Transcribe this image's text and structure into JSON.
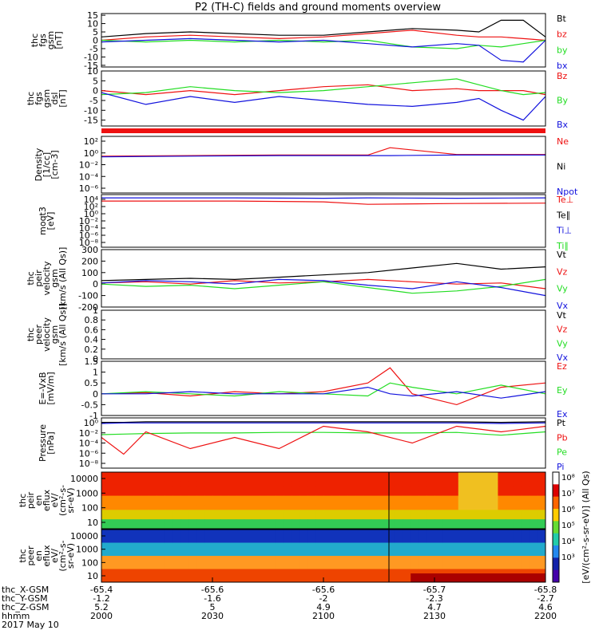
{
  "title": "P2 (TH-C) fields and ground moments overview",
  "colors": {
    "black": "#000000",
    "red": "#ee1111",
    "green": "#22dd22",
    "blue": "#1111dd"
  },
  "chart_data": [
    {
      "type": "line",
      "id": "p1",
      "ylabel": [
        "thc",
        "fgs",
        "gsm",
        "[nT]"
      ],
      "yticks": [
        15,
        10,
        5,
        0,
        -5,
        -10,
        -15
      ],
      "ylim": [
        -16,
        16
      ],
      "legend": [
        {
          "name": "Bt",
          "color": "black"
        },
        {
          "name": "bz",
          "color": "red"
        },
        {
          "name": "by",
          "color": "green"
        },
        {
          "name": "bx",
          "color": "blue"
        }
      ],
      "x": [
        0,
        0.1,
        0.2,
        0.3,
        0.4,
        0.5,
        0.6,
        0.7,
        0.8,
        0.85,
        0.9,
        0.95,
        1
      ],
      "series": [
        {
          "name": "Bt",
          "color": "black",
          "values": [
            2,
            4,
            5,
            4,
            3,
            3,
            5,
            7,
            6,
            5,
            12,
            12,
            2
          ]
        },
        {
          "name": "bz",
          "color": "red",
          "values": [
            0,
            2,
            3,
            2,
            1,
            2,
            4,
            6,
            3,
            2,
            2,
            1,
            0
          ]
        },
        {
          "name": "by",
          "color": "green",
          "values": [
            0,
            -1,
            0,
            -1,
            0,
            -1,
            0,
            -4,
            -5,
            -3,
            -4,
            -2,
            0
          ]
        },
        {
          "name": "bx",
          "color": "blue",
          "values": [
            -1,
            0,
            1,
            0,
            -1,
            0,
            -2,
            -4,
            -2,
            -3,
            -12,
            -13,
            0
          ]
        }
      ]
    },
    {
      "type": "line",
      "id": "p2",
      "ylabel": [
        "thc",
        "fgs",
        "gsm",
        "dsl",
        "[nT]"
      ],
      "yticks": [
        10,
        5,
        0,
        -5,
        -10,
        -15
      ],
      "ylim": [
        -18,
        10
      ],
      "legend": [
        {
          "name": "Bz",
          "color": "red"
        },
        {
          "name": "By",
          "color": "green"
        },
        {
          "name": "Bx",
          "color": "blue"
        }
      ],
      "x": [
        0,
        0.1,
        0.2,
        0.3,
        0.4,
        0.5,
        0.6,
        0.7,
        0.8,
        0.85,
        0.9,
        0.95,
        1
      ],
      "series": [
        {
          "name": "Bz",
          "color": "red",
          "values": [
            0,
            -2,
            0,
            -2,
            0,
            2,
            3,
            0,
            1,
            0,
            0,
            0,
            -2
          ]
        },
        {
          "name": "By",
          "color": "green",
          "values": [
            -2,
            -1,
            2,
            0,
            -1,
            0,
            2,
            4,
            6,
            3,
            0,
            -2,
            -1
          ]
        },
        {
          "name": "Bx",
          "color": "blue",
          "values": [
            -1,
            -7,
            -3,
            -6,
            -3,
            -5,
            -7,
            -8,
            -6,
            -4,
            -10,
            -15,
            -3
          ]
        }
      ]
    },
    {
      "type": "line",
      "id": "p3",
      "ylabel": [
        "Density",
        "[1/cc]",
        "[cm-3]"
      ],
      "yticks_text": [
        "10²",
        "10⁰",
        "10⁻²",
        "10⁻⁴",
        "10⁻⁶"
      ],
      "scale": "log",
      "ylim": [
        -7,
        3
      ],
      "legend": [
        {
          "name": "Ne",
          "color": "red"
        },
        {
          "name": "Ni",
          "color": "black"
        },
        {
          "name": "Npot",
          "color": "blue"
        }
      ],
      "x": [
        0,
        0.2,
        0.4,
        0.6,
        0.65,
        0.8,
        1
      ],
      "series": [
        {
          "name": "Ne",
          "color": "red",
          "values": [
            -0.5,
            -0.4,
            -0.3,
            -0.3,
            1,
            -0.2,
            -0.2
          ]
        },
        {
          "name": "Npot",
          "color": "blue",
          "values": [
            -0.6,
            -0.5,
            -0.4,
            -0.4,
            -0.4,
            -0.3,
            -0.3
          ]
        }
      ]
    },
    {
      "type": "line",
      "id": "p4",
      "ylabel": [
        "moqt3",
        "[eV]"
      ],
      "yticks_text": [
        "10⁴",
        "10²",
        "10⁰",
        "10⁻²",
        "10⁻⁴",
        "10⁻⁶",
        "10⁻⁸"
      ],
      "scale": "log",
      "ylim": [
        -9,
        4
      ],
      "legend": [
        {
          "name": "Te⊥",
          "color": "red"
        },
        {
          "name": "Te∥",
          "color": "black"
        },
        {
          "name": "Ti⊥",
          "color": "blue"
        },
        {
          "name": "Ti∥",
          "color": "green"
        }
      ],
      "x": [
        0,
        0.3,
        0.5,
        0.6,
        0.8,
        1
      ],
      "series": [
        {
          "name": "Ti",
          "color": "blue",
          "values": [
            3.2,
            3.2,
            3.1,
            3.2,
            3.1,
            3.2
          ]
        },
        {
          "name": "Te",
          "color": "red",
          "values": [
            2.4,
            2.4,
            2.2,
            1.6,
            1.8,
            1.9
          ]
        }
      ]
    },
    {
      "type": "line",
      "id": "p5",
      "ylabel": [
        "thc",
        "peir",
        "velocity",
        "gsm",
        "[km/s (All Qs)]"
      ],
      "yticks": [
        300,
        200,
        100,
        0,
        -100,
        -200
      ],
      "ylim": [
        -200,
        300
      ],
      "legend": [
        {
          "name": "Vt",
          "color": "black"
        },
        {
          "name": "Vz",
          "color": "red"
        },
        {
          "name": "Vy",
          "color": "green"
        },
        {
          "name": "Vx",
          "color": "blue"
        }
      ],
      "x": [
        0,
        0.1,
        0.2,
        0.3,
        0.4,
        0.5,
        0.6,
        0.7,
        0.8,
        0.9,
        1
      ],
      "series": [
        {
          "name": "Vt",
          "color": "black",
          "values": [
            30,
            40,
            50,
            40,
            60,
            80,
            100,
            140,
            180,
            130,
            150
          ]
        },
        {
          "name": "Vz",
          "color": "red",
          "values": [
            10,
            20,
            0,
            30,
            10,
            20,
            40,
            20,
            0,
            10,
            -40
          ]
        },
        {
          "name": "Vy",
          "color": "green",
          "values": [
            0,
            -20,
            -10,
            -40,
            -10,
            20,
            -30,
            -80,
            -60,
            -20,
            40
          ]
        },
        {
          "name": "Vx",
          "color": "blue",
          "values": [
            10,
            30,
            20,
            0,
            40,
            30,
            -10,
            -40,
            20,
            -30,
            -100
          ]
        }
      ]
    },
    {
      "type": "line",
      "id": "p6",
      "ylabel": [
        "thc",
        "peer",
        "velocity",
        "gsm",
        "[km/s (All Qs)]"
      ],
      "yticks": [
        1.0,
        0.8,
        0.6,
        0.4,
        0.2,
        0.0
      ],
      "ylim": [
        0,
        1
      ],
      "legend": [
        {
          "name": "Vt",
          "color": "black"
        },
        {
          "name": "Vz",
          "color": "red"
        },
        {
          "name": "Vy",
          "color": "green"
        },
        {
          "name": "Vx",
          "color": "blue"
        }
      ],
      "series": []
    },
    {
      "type": "line",
      "id": "p7",
      "ylabel": [
        "E=-VxB",
        "[mV/m]"
      ],
      "yticks": [
        1.5,
        1.0,
        0.5,
        0.0,
        -0.5,
        -1.0
      ],
      "ylim": [
        -1,
        1.5
      ],
      "legend": [
        {
          "name": "Ez",
          "color": "red"
        },
        {
          "name": "Ey",
          "color": "green"
        },
        {
          "name": "Ex",
          "color": "blue"
        }
      ],
      "x": [
        0,
        0.1,
        0.2,
        0.3,
        0.4,
        0.5,
        0.6,
        0.65,
        0.7,
        0.8,
        0.9,
        1
      ],
      "series": [
        {
          "name": "Ez",
          "color": "red",
          "values": [
            0,
            0.05,
            -0.1,
            0.1,
            0,
            0.1,
            0.5,
            1.2,
            0,
            -0.5,
            0.3,
            0.5
          ]
        },
        {
          "name": "Ey",
          "color": "green",
          "values": [
            0,
            0.1,
            0,
            -0.1,
            0.1,
            0,
            -0.1,
            0.5,
            0.3,
            0,
            0.4,
            0
          ]
        },
        {
          "name": "Ex",
          "color": "blue",
          "values": [
            0,
            0,
            0.1,
            0,
            0,
            0,
            0.3,
            0,
            -0.1,
            0.1,
            -0.2,
            0.1
          ]
        }
      ]
    },
    {
      "type": "line",
      "id": "p8",
      "ylabel": [
        "Pressure",
        "[nPa]"
      ],
      "yticks_text": [
        "10⁰",
        "10⁻²",
        "10⁻⁴",
        "10⁻⁶",
        "10⁻⁸"
      ],
      "scale": "log",
      "ylim": [
        -8.5,
        0.5
      ],
      "legend": [
        {
          "name": "Pt",
          "color": "black"
        },
        {
          "name": "Pb",
          "color": "red"
        },
        {
          "name": "Pe",
          "color": "green"
        },
        {
          "name": "Pi",
          "color": "blue"
        }
      ],
      "x": [
        0,
        0.05,
        0.1,
        0.2,
        0.3,
        0.4,
        0.5,
        0.6,
        0.7,
        0.8,
        0.9,
        1
      ],
      "series": [
        {
          "name": "Pt",
          "color": "black",
          "values": [
            -0.3,
            -0.3,
            -0.2,
            -0.2,
            -0.2,
            -0.2,
            -0.2,
            -0.2,
            -0.2,
            -0.2,
            -0.3,
            -0.2
          ]
        },
        {
          "name": "Pi",
          "color": "blue",
          "values": [
            -0.5,
            -0.4,
            -0.4,
            -0.4,
            -0.4,
            -0.4,
            -0.4,
            -0.4,
            -0.4,
            -0.4,
            -0.5,
            -0.4
          ]
        },
        {
          "name": "Pe",
          "color": "green",
          "values": [
            -2.5,
            -2.4,
            -2.3,
            -2.2,
            -2.2,
            -2.1,
            -2.1,
            -2.2,
            -2.2,
            -2.1,
            -2.6,
            -2.0
          ]
        },
        {
          "name": "Pb",
          "color": "red",
          "values": [
            -3,
            -6,
            -2,
            -5,
            -3,
            -5,
            -1,
            -2,
            -4,
            -1,
            -2,
            -1
          ]
        }
      ]
    },
    {
      "type": "heatmap",
      "id": "p9",
      "ylabel": [
        "thc",
        "peir",
        "en",
        "eflux",
        "eV/",
        "(cm²-s-",
        "sr-eV)"
      ],
      "yticks": [
        10000,
        1000,
        100,
        10
      ]
    },
    {
      "type": "heatmap",
      "id": "p10",
      "ylabel": [
        "thc",
        "peer",
        "en",
        "eflux",
        "eV/",
        "(cm²-s-",
        "sr-eV)"
      ],
      "yticks": [
        10000,
        1000,
        100,
        10
      ]
    }
  ],
  "colorbar": {
    "ticks": [
      "10⁸",
      "10⁷",
      "10⁶",
      "10⁵",
      "10⁴",
      "10³"
    ],
    "label": "[eV/(cm²-s-sr-eV)] (All Qs)"
  },
  "xaxis": {
    "row_labels": [
      "thc_X-GSM",
      "thc_Y-GSM",
      "thc_Z-GSM",
      "hhmm"
    ],
    "date": "2017 May 10",
    "columns": [
      {
        "x": -65.4,
        "y": -1.2,
        "z": 5.2,
        "hhmm": "2000"
      },
      {
        "x": -65.6,
        "y": -1.6,
        "z": 5.0,
        "hhmm": "2030"
      },
      {
        "x": -65.6,
        "y": -2.0,
        "z": 4.9,
        "hhmm": "2100"
      },
      {
        "x": -65.7,
        "y": -2.3,
        "z": 4.7,
        "hhmm": "2130"
      },
      {
        "x": -65.8,
        "y": -2.7,
        "z": 4.6,
        "hhmm": "2200"
      }
    ]
  }
}
